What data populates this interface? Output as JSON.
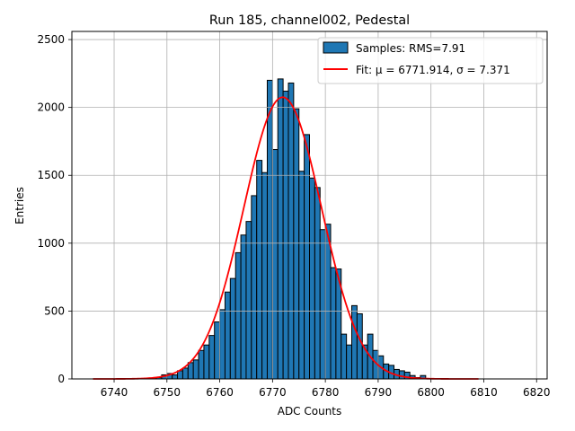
{
  "chart_data": {
    "type": "bar",
    "title": "Run 185, channel002, Pedestal",
    "xlabel": "ADC Counts",
    "ylabel": "Entries",
    "xlim": [
      6732,
      6822
    ],
    "ylim": [
      0,
      2560
    ],
    "xticks": [
      6740,
      6750,
      6760,
      6770,
      6780,
      6790,
      6800,
      6810,
      6820
    ],
    "yticks": [
      0,
      500,
      1000,
      1500,
      2000,
      2500
    ],
    "grid": true,
    "legend_position": "top-right",
    "bin_width": 1,
    "series": [
      {
        "name": "Samples: RMS=7.91",
        "kind": "histogram",
        "color": "#1f77b4",
        "edgecolor": "#000000",
        "bins": [
          [
            6747,
            5
          ],
          [
            6748,
            10
          ],
          [
            6749,
            30
          ],
          [
            6750,
            40
          ],
          [
            6751,
            30
          ],
          [
            6752,
            60
          ],
          [
            6753,
            80
          ],
          [
            6754,
            120
          ],
          [
            6755,
            140
          ],
          [
            6756,
            210
          ],
          [
            6757,
            250
          ],
          [
            6758,
            320
          ],
          [
            6759,
            420
          ],
          [
            6760,
            510
          ],
          [
            6761,
            640
          ],
          [
            6762,
            740
          ],
          [
            6763,
            930
          ],
          [
            6764,
            1060
          ],
          [
            6765,
            1160
          ],
          [
            6766,
            1350
          ],
          [
            6767,
            1610
          ],
          [
            6768,
            1520
          ],
          [
            6769,
            2200
          ],
          [
            6770,
            1690
          ],
          [
            6771,
            2210
          ],
          [
            6772,
            2120
          ],
          [
            6773,
            2180
          ],
          [
            6774,
            1990
          ],
          [
            6775,
            1530
          ],
          [
            6776,
            1800
          ],
          [
            6777,
            1480
          ],
          [
            6778,
            1410
          ],
          [
            6779,
            1100
          ],
          [
            6780,
            1140
          ],
          [
            6781,
            820
          ],
          [
            6782,
            810
          ],
          [
            6783,
            330
          ],
          [
            6784,
            250
          ],
          [
            6785,
            540
          ],
          [
            6786,
            480
          ],
          [
            6787,
            250
          ],
          [
            6788,
            330
          ],
          [
            6789,
            210
          ],
          [
            6790,
            170
          ],
          [
            6791,
            110
          ],
          [
            6792,
            100
          ],
          [
            6793,
            70
          ],
          [
            6794,
            60
          ],
          [
            6795,
            50
          ],
          [
            6796,
            25
          ],
          [
            6797,
            10
          ],
          [
            6798,
            25
          ]
        ]
      },
      {
        "name": "Fit: μ = 6771.914, σ = 7.371",
        "kind": "line",
        "color": "#ff0000",
        "model": "gaussian",
        "amplitude": 2075,
        "mu": 6771.914,
        "sigma": 7.371,
        "x_range": [
          6736,
          6809
        ]
      }
    ]
  }
}
